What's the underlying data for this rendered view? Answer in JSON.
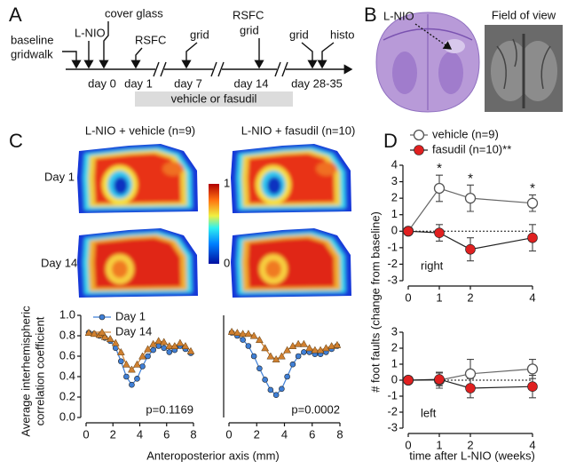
{
  "panels": [
    "A",
    "B",
    "C",
    "D"
  ],
  "timeline": {
    "events": [
      [
        "baseline",
        "gridwalk"
      ],
      [
        "L-NIO"
      ],
      [
        "cover glass"
      ],
      [
        "RSFC"
      ],
      [
        "grid"
      ],
      [
        "RSFC",
        "grid"
      ],
      [
        "grid"
      ],
      [
        "histo"
      ]
    ],
    "days": [
      "day 0",
      "day 1",
      "day 7",
      "day 14",
      "day 28-35"
    ],
    "treatment": "vehicle or fasudil"
  },
  "histology": {
    "label": "L-NIO",
    "field_of_view": "Field of view"
  },
  "maps": {
    "columns": [
      "L-NIO + vehicle (n=9)",
      "L-NIO + fasudil (n=10)"
    ],
    "rows": [
      "Day 1",
      "Day 14"
    ],
    "colorbar_ticks": [
      1,
      0
    ]
  },
  "panel_c": {
    "xlabel": "Anteroposterior axis (mm)",
    "ylabel": [
      "Average interhemispheric",
      "correlation coefficient"
    ]
  },
  "panel_d": {
    "xlabel": "time after L-NIO (weeks)",
    "ylabel": "# foot faults (change from baseline)"
  },
  "chart_data": [
    {
      "type": "line",
      "x": [
        0.2,
        0.6,
        1.0,
        1.4,
        1.8,
        2.2,
        2.6,
        3.0,
        3.4,
        3.8,
        4.2,
        4.6,
        5.0,
        5.4,
        5.8,
        6.2,
        6.6,
        7.0,
        7.4,
        7.8
      ],
      "xlim": [
        0,
        8
      ],
      "xticks": [
        0,
        2,
        4,
        6,
        8
      ],
      "ylim": [
        0,
        1
      ],
      "yticks": [
        {
          "value": 0,
          "label": "0.0"
        },
        {
          "value": 0.2,
          "label": "0.2"
        },
        {
          "value": 0.4,
          "label": "0.4"
        },
        {
          "value": 0.6,
          "label": "0.6"
        },
        {
          "value": 0.8,
          "label": "0.8"
        },
        {
          "value": 1,
          "label": "1.0"
        }
      ],
      "series": [
        {
          "name": "Day 1",
          "color": "#3f7fd6",
          "marker": "circle",
          "values": [
            0.83,
            0.82,
            0.8,
            0.78,
            0.75,
            0.68,
            0.55,
            0.4,
            0.32,
            0.38,
            0.5,
            0.6,
            0.66,
            0.7,
            0.68,
            0.64,
            0.66,
            0.7,
            0.67,
            0.63
          ]
        },
        {
          "name": "Day 14",
          "color": "#d08030",
          "marker": "triangle",
          "values": [
            0.83,
            0.82,
            0.81,
            0.79,
            0.77,
            0.73,
            0.64,
            0.52,
            0.47,
            0.52,
            0.6,
            0.67,
            0.72,
            0.75,
            0.74,
            0.7,
            0.7,
            0.73,
            0.7,
            0.65
          ]
        }
      ],
      "legend": "upper left",
      "annotation": "p=0.1169"
    },
    {
      "type": "line",
      "x": [
        0.2,
        0.6,
        1.0,
        1.4,
        1.8,
        2.2,
        2.6,
        3.0,
        3.4,
        3.8,
        4.2,
        4.6,
        5.0,
        5.4,
        5.8,
        6.2,
        6.6,
        7.0,
        7.4,
        7.8
      ],
      "xlim": [
        0,
        8
      ],
      "xticks": [
        0,
        2,
        4,
        6,
        8
      ],
      "ylim": [
        0,
        1
      ],
      "series": [
        {
          "color": "#3f7fd6",
          "marker": "circle",
          "values": [
            0.83,
            0.8,
            0.76,
            0.7,
            0.6,
            0.48,
            0.37,
            0.27,
            0.22,
            0.28,
            0.4,
            0.52,
            0.6,
            0.64,
            0.64,
            0.62,
            0.62,
            0.64,
            0.67,
            0.7
          ]
        },
        {
          "color": "#d08030",
          "marker": "triangle",
          "values": [
            0.84,
            0.83,
            0.82,
            0.82,
            0.8,
            0.76,
            0.68,
            0.6,
            0.57,
            0.6,
            0.66,
            0.7,
            0.72,
            0.72,
            0.68,
            0.66,
            0.66,
            0.68,
            0.7,
            0.71
          ]
        }
      ],
      "annotation": "p=0.0002"
    },
    {
      "type": "line",
      "x": [
        0,
        1,
        2,
        4
      ],
      "xlim": [
        0,
        4
      ],
      "xticks": [
        0,
        1,
        2,
        4
      ],
      "ylim": [
        -3,
        4
      ],
      "yticks": [
        -3,
        -2,
        -1,
        0,
        1,
        2,
        3,
        4
      ],
      "zero_line": true,
      "series": [
        {
          "name": "vehicle (n=9)",
          "color": "#808080",
          "marker": "open-circle",
          "values": [
            0,
            2.6,
            2.0,
            1.7
          ],
          "errors": [
            0,
            0.8,
            0.8,
            0.5
          ],
          "significance": [
            null,
            "*",
            "*",
            "*"
          ]
        },
        {
          "name": "fasudil (n=10)**",
          "color": "#e02020",
          "marker": "circle",
          "values": [
            0,
            -0.1,
            -1.1,
            -0.4
          ],
          "errors": [
            0,
            0.5,
            0.7,
            0.8
          ]
        }
      ],
      "legend": "top",
      "annotation": "right"
    },
    {
      "type": "line",
      "x": [
        0,
        1,
        2,
        4
      ],
      "xlim": [
        0,
        4
      ],
      "xticks": [
        0,
        1,
        2,
        4
      ],
      "ylim": [
        -3,
        3
      ],
      "yticks": [
        -3,
        -2,
        -1,
        0,
        1,
        2,
        3
      ],
      "zero_line": true,
      "series": [
        {
          "color": "#808080",
          "marker": "open-circle",
          "values": [
            0,
            0,
            0.4,
            0.7
          ],
          "errors": [
            0,
            0.5,
            0.9,
            0.6
          ]
        },
        {
          "color": "#e02020",
          "marker": "circle",
          "values": [
            0,
            0.05,
            -0.5,
            -0.4
          ],
          "errors": [
            0,
            0.4,
            0.6,
            0.7
          ]
        }
      ],
      "annotation": "left"
    }
  ]
}
